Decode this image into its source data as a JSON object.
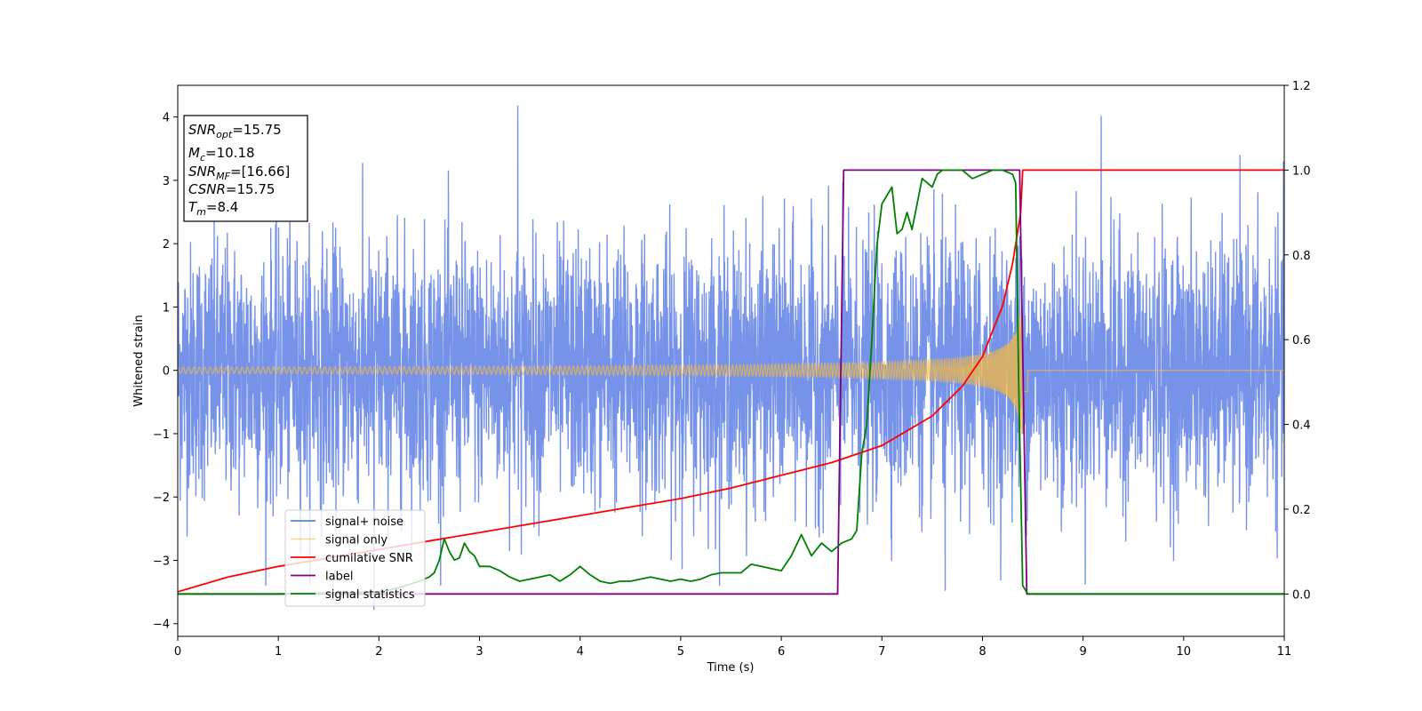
{
  "chart_data": {
    "type": "line",
    "xlabel": "Time (s)",
    "ylabel": "Whitened strain",
    "xlim": [
      0,
      11
    ],
    "ylim_left": [
      -4.2,
      4.5
    ],
    "ylim_right": [
      -0.1,
      1.2
    ],
    "x_ticks": [
      0,
      1,
      2,
      3,
      4,
      5,
      6,
      7,
      8,
      9,
      10,
      11
    ],
    "y_ticks_left": [
      -4,
      -3,
      -2,
      -1,
      0,
      1,
      2,
      3,
      4
    ],
    "y_ticks_right": [
      0.0,
      0.2,
      0.4,
      0.6,
      0.8,
      1.0,
      1.2
    ],
    "grid": false,
    "legend_position": "lower-left",
    "annotation": {
      "lines": [
        {
          "main": "SNR",
          "sub": "opt",
          "value": "=15.75"
        },
        {
          "main": "M",
          "sub": "c",
          "value": "=10.18"
        },
        {
          "main": "SNR",
          "sub": "MF",
          "value": "=[16.66]"
        },
        {
          "main": "CSNR",
          "sub": "",
          "value": "=15.75"
        },
        {
          "main": "T",
          "sub": "m",
          "value": "=8.4"
        }
      ]
    },
    "series": [
      {
        "name": "signal+ noise",
        "axis": "left",
        "color": "#4169e1",
        "kind": "noise",
        "noise_sigma": 1.0,
        "spike_extremes": [
          {
            "x": 3.38,
            "y": 4.18
          },
          {
            "x": 9.18,
            "y": 4.02
          },
          {
            "x": 1.95,
            "y": -3.78
          },
          {
            "x": 7.63,
            "y": -3.48
          }
        ]
      },
      {
        "name": "signal only",
        "axis": "left",
        "color": "#f5b942",
        "kind": "chirp",
        "amplitude_at_start": 0.05,
        "amplitude_at_merger": 1.0,
        "merger_time": 8.4,
        "end_time": 8.45
      },
      {
        "name": "cumilative SNR",
        "axis": "right",
        "color": "#ff0000",
        "x": [
          0,
          0.5,
          1,
          1.5,
          2,
          2.5,
          3,
          3.5,
          4,
          4.5,
          5,
          5.5,
          6,
          6.5,
          7,
          7.5,
          7.8,
          8.0,
          8.2,
          8.3,
          8.38,
          8.4,
          11
        ],
        "y": [
          0.005,
          0.04,
          0.065,
          0.085,
          0.105,
          0.125,
          0.145,
          0.165,
          0.185,
          0.205,
          0.225,
          0.25,
          0.28,
          0.31,
          0.35,
          0.42,
          0.49,
          0.56,
          0.68,
          0.78,
          0.9,
          1.0,
          1.0
        ]
      },
      {
        "name": "label",
        "axis": "right",
        "color": "#800080",
        "x": [
          0,
          6.56,
          6.62,
          8.37,
          8.44,
          11
        ],
        "y": [
          0,
          0,
          1,
          1,
          0,
          0
        ]
      },
      {
        "name": "signal statistics",
        "axis": "right",
        "color": "#008000",
        "x": [
          0,
          1,
          2,
          2.2,
          2.4,
          2.5,
          2.55,
          2.6,
          2.65,
          2.7,
          2.75,
          2.8,
          2.85,
          2.9,
          2.95,
          3.0,
          3.1,
          3.2,
          3.3,
          3.4,
          3.5,
          3.6,
          3.7,
          3.8,
          3.9,
          4.0,
          4.1,
          4.2,
          4.3,
          4.4,
          4.5,
          4.6,
          4.7,
          4.8,
          4.9,
          5.0,
          5.1,
          5.2,
          5.3,
          5.4,
          5.5,
          5.6,
          5.7,
          5.8,
          5.9,
          6.0,
          6.1,
          6.2,
          6.3,
          6.4,
          6.5,
          6.6,
          6.7,
          6.75,
          6.8,
          6.85,
          6.9,
          6.95,
          7.0,
          7.05,
          7.1,
          7.15,
          7.2,
          7.25,
          7.3,
          7.35,
          7.4,
          7.45,
          7.5,
          7.55,
          7.6,
          7.65,
          7.7,
          7.8,
          7.9,
          8.0,
          8.1,
          8.2,
          8.3,
          8.33,
          8.36,
          8.4,
          8.45,
          8.5,
          11
        ],
        "y": [
          0,
          0,
          0.005,
          0.015,
          0.03,
          0.04,
          0.05,
          0.08,
          0.13,
          0.1,
          0.08,
          0.085,
          0.12,
          0.1,
          0.09,
          0.065,
          0.065,
          0.055,
          0.04,
          0.03,
          0.035,
          0.04,
          0.045,
          0.03,
          0.045,
          0.065,
          0.045,
          0.03,
          0.025,
          0.03,
          0.03,
          0.035,
          0.04,
          0.035,
          0.03,
          0.035,
          0.03,
          0.035,
          0.045,
          0.05,
          0.05,
          0.05,
          0.07,
          0.065,
          0.06,
          0.055,
          0.09,
          0.14,
          0.09,
          0.12,
          0.1,
          0.12,
          0.13,
          0.15,
          0.33,
          0.4,
          0.6,
          0.82,
          0.92,
          0.94,
          0.96,
          0.85,
          0.86,
          0.9,
          0.86,
          0.92,
          0.98,
          0.97,
          0.96,
          0.99,
          1.0,
          1.0,
          1.0,
          1.0,
          0.98,
          0.99,
          1.0,
          1.0,
          0.99,
          0.97,
          0.5,
          0.02,
          0.0,
          0.0,
          0.0
        ]
      }
    ]
  }
}
